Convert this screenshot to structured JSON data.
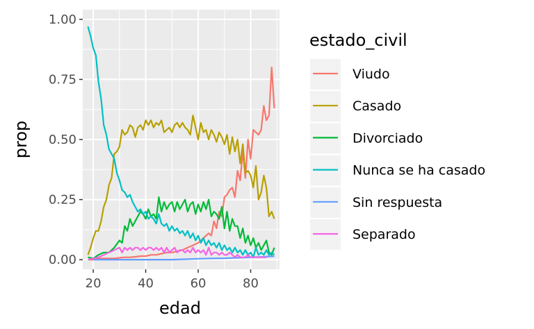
{
  "chart_data": {
    "type": "line",
    "xlabel": "edad",
    "ylabel": "prop",
    "xlim": [
      16,
      91
    ],
    "ylim": [
      -0.04,
      1.04
    ],
    "x_ticks": [
      20,
      40,
      60,
      80
    ],
    "x_tick_labels": [
      "20",
      "40",
      "60",
      "80"
    ],
    "y_ticks": [
      0,
      0.25,
      0.5,
      0.75,
      1.0
    ],
    "y_tick_labels": [
      "0.00",
      "0.25",
      "0.50",
      "0.75",
      "1.00"
    ],
    "grid": true,
    "legend": {
      "title": "estado_civil",
      "position": "right",
      "entries": [
        "Viudo",
        "Casado",
        "Divorciado",
        "Nunca se ha casado",
        "Sin respuesta",
        "Separado"
      ]
    },
    "series": [
      {
        "name": "Viudo",
        "color": "#F8766D",
        "x": [
          18,
          20,
          22,
          24,
          26,
          28,
          30,
          32,
          34,
          36,
          38,
          40,
          42,
          44,
          46,
          48,
          50,
          52,
          54,
          56,
          58,
          60,
          62,
          64,
          65,
          66,
          67,
          68,
          69,
          70,
          71,
          72,
          73,
          74,
          75,
          76,
          77,
          78,
          79,
          80,
          81,
          82,
          83,
          84,
          85,
          86,
          87,
          88,
          89
        ],
        "y": [
          0.0,
          0.0,
          0.005,
          0.005,
          0.005,
          0.005,
          0.008,
          0.01,
          0.01,
          0.012,
          0.015,
          0.015,
          0.02,
          0.02,
          0.025,
          0.03,
          0.03,
          0.035,
          0.04,
          0.05,
          0.06,
          0.07,
          0.09,
          0.11,
          0.1,
          0.16,
          0.13,
          0.2,
          0.18,
          0.26,
          0.27,
          0.29,
          0.3,
          0.26,
          0.37,
          0.33,
          0.45,
          0.34,
          0.5,
          0.42,
          0.54,
          0.53,
          0.52,
          0.54,
          0.64,
          0.58,
          0.6,
          0.8,
          0.63
        ]
      },
      {
        "name": "Casado",
        "color": "#B79F00",
        "x": [
          18,
          19,
          20,
          21,
          22,
          23,
          24,
          25,
          26,
          27,
          28,
          29,
          30,
          31,
          32,
          33,
          34,
          35,
          36,
          37,
          38,
          39,
          40,
          41,
          42,
          43,
          44,
          45,
          46,
          47,
          48,
          49,
          50,
          51,
          52,
          53,
          54,
          55,
          56,
          57,
          58,
          59,
          60,
          61,
          62,
          63,
          64,
          65,
          66,
          67,
          68,
          69,
          70,
          71,
          72,
          73,
          74,
          75,
          76,
          77,
          78,
          79,
          80,
          81,
          82,
          83,
          84,
          85,
          86,
          87,
          88,
          89
        ],
        "y": [
          0.02,
          0.05,
          0.09,
          0.12,
          0.12,
          0.16,
          0.22,
          0.25,
          0.31,
          0.34,
          0.44,
          0.45,
          0.47,
          0.54,
          0.52,
          0.53,
          0.56,
          0.55,
          0.51,
          0.55,
          0.56,
          0.54,
          0.58,
          0.56,
          0.58,
          0.55,
          0.57,
          0.56,
          0.58,
          0.53,
          0.54,
          0.55,
          0.53,
          0.56,
          0.57,
          0.55,
          0.57,
          0.55,
          0.54,
          0.52,
          0.6,
          0.55,
          0.5,
          0.57,
          0.53,
          0.54,
          0.5,
          0.54,
          0.52,
          0.49,
          0.53,
          0.51,
          0.48,
          0.52,
          0.44,
          0.51,
          0.45,
          0.5,
          0.4,
          0.48,
          0.36,
          0.37,
          0.35,
          0.3,
          0.39,
          0.25,
          0.28,
          0.35,
          0.3,
          0.18,
          0.2,
          0.17
        ]
      },
      {
        "name": "Divorciado",
        "color": "#00BA38",
        "x": [
          18,
          20,
          22,
          24,
          26,
          28,
          30,
          31,
          32,
          33,
          34,
          35,
          36,
          37,
          38,
          39,
          40,
          41,
          42,
          43,
          44,
          45,
          46,
          47,
          48,
          49,
          50,
          51,
          52,
          53,
          54,
          55,
          56,
          57,
          58,
          59,
          60,
          61,
          62,
          63,
          64,
          65,
          66,
          67,
          68,
          69,
          70,
          71,
          72,
          73,
          74,
          75,
          76,
          77,
          78,
          79,
          80,
          81,
          82,
          83,
          84,
          85,
          86,
          87,
          88,
          89
        ],
        "y": [
          0.01,
          0.005,
          0.02,
          0.03,
          0.03,
          0.05,
          0.08,
          0.07,
          0.14,
          0.12,
          0.17,
          0.14,
          0.16,
          0.18,
          0.2,
          0.19,
          0.17,
          0.21,
          0.18,
          0.19,
          0.17,
          0.26,
          0.2,
          0.24,
          0.21,
          0.23,
          0.24,
          0.2,
          0.24,
          0.21,
          0.23,
          0.25,
          0.2,
          0.23,
          0.24,
          0.19,
          0.23,
          0.2,
          0.24,
          0.21,
          0.25,
          0.18,
          0.2,
          0.19,
          0.17,
          0.22,
          0.13,
          0.2,
          0.12,
          0.17,
          0.14,
          0.14,
          0.09,
          0.13,
          0.07,
          0.1,
          0.06,
          0.09,
          0.05,
          0.07,
          0.04,
          0.06,
          0.08,
          0.03,
          0.02,
          0.05
        ]
      },
      {
        "name": "Nunca se ha casado",
        "color": "#00BFC4",
        "x": [
          18,
          19,
          20,
          21,
          22,
          23,
          24,
          25,
          26,
          27,
          28,
          29,
          30,
          31,
          32,
          33,
          34,
          35,
          36,
          37,
          38,
          39,
          40,
          41,
          42,
          43,
          44,
          45,
          46,
          47,
          48,
          49,
          50,
          51,
          52,
          53,
          54,
          55,
          56,
          57,
          58,
          59,
          60,
          61,
          62,
          63,
          64,
          65,
          66,
          67,
          68,
          69,
          70,
          71,
          72,
          73,
          74,
          75,
          76,
          77,
          78,
          79,
          80,
          81,
          82,
          83,
          84,
          85,
          86,
          87,
          88,
          89
        ],
        "y": [
          0.97,
          0.93,
          0.88,
          0.85,
          0.74,
          0.67,
          0.56,
          0.52,
          0.46,
          0.44,
          0.42,
          0.36,
          0.33,
          0.29,
          0.28,
          0.26,
          0.27,
          0.24,
          0.22,
          0.2,
          0.21,
          0.19,
          0.2,
          0.17,
          0.18,
          0.17,
          0.15,
          0.19,
          0.15,
          0.14,
          0.15,
          0.12,
          0.14,
          0.12,
          0.13,
          0.11,
          0.12,
          0.1,
          0.12,
          0.09,
          0.11,
          0.08,
          0.1,
          0.07,
          0.09,
          0.06,
          0.08,
          0.06,
          0.07,
          0.05,
          0.07,
          0.04,
          0.06,
          0.04,
          0.05,
          0.03,
          0.05,
          0.03,
          0.04,
          0.02,
          0.04,
          0.02,
          0.03,
          0.01,
          0.05,
          0.02,
          0.03,
          0.02,
          0.04,
          0.02,
          0.03,
          0.02
        ]
      },
      {
        "name": "Sin respuesta",
        "color": "#619CFF",
        "x": [
          20,
          25,
          30,
          35,
          40,
          45,
          50,
          55,
          60,
          65,
          70,
          75,
          80,
          85,
          89
        ],
        "y": [
          0.0,
          0.0,
          0.0,
          0.0,
          0.0,
          0.0,
          0.0,
          0.002,
          0.004,
          0.005,
          0.006,
          0.008,
          0.01,
          0.012,
          0.015
        ]
      },
      {
        "name": "Separado",
        "color": "#F564E3",
        "x": [
          18,
          20,
          22,
          24,
          26,
          28,
          30,
          31,
          32,
          33,
          34,
          35,
          36,
          37,
          38,
          39,
          40,
          41,
          42,
          43,
          44,
          45,
          46,
          47,
          48,
          49,
          50,
          51,
          52,
          53,
          54,
          55,
          56,
          57,
          58,
          59,
          60,
          61,
          62,
          63,
          64,
          65,
          66,
          67,
          68,
          69,
          70,
          71,
          72,
          73,
          74,
          75,
          76,
          77,
          78,
          79,
          80,
          82,
          84,
          86
        ],
        "y": [
          0.0,
          0.005,
          0.01,
          0.02,
          0.03,
          0.04,
          0.05,
          0.03,
          0.05,
          0.04,
          0.05,
          0.04,
          0.05,
          0.05,
          0.04,
          0.05,
          0.04,
          0.05,
          0.05,
          0.04,
          0.05,
          0.04,
          0.05,
          0.03,
          0.05,
          0.03,
          0.04,
          0.05,
          0.03,
          0.04,
          0.04,
          0.03,
          0.04,
          0.03,
          0.05,
          0.03,
          0.04,
          0.03,
          0.04,
          0.02,
          0.05,
          0.02,
          0.03,
          0.03,
          0.02,
          0.03,
          0.02,
          0.02,
          0.03,
          0.02,
          0.01,
          0.02,
          0.01,
          0.01,
          0.01,
          0.02,
          0.01,
          0.01,
          0.01,
          0.01
        ]
      }
    ]
  }
}
